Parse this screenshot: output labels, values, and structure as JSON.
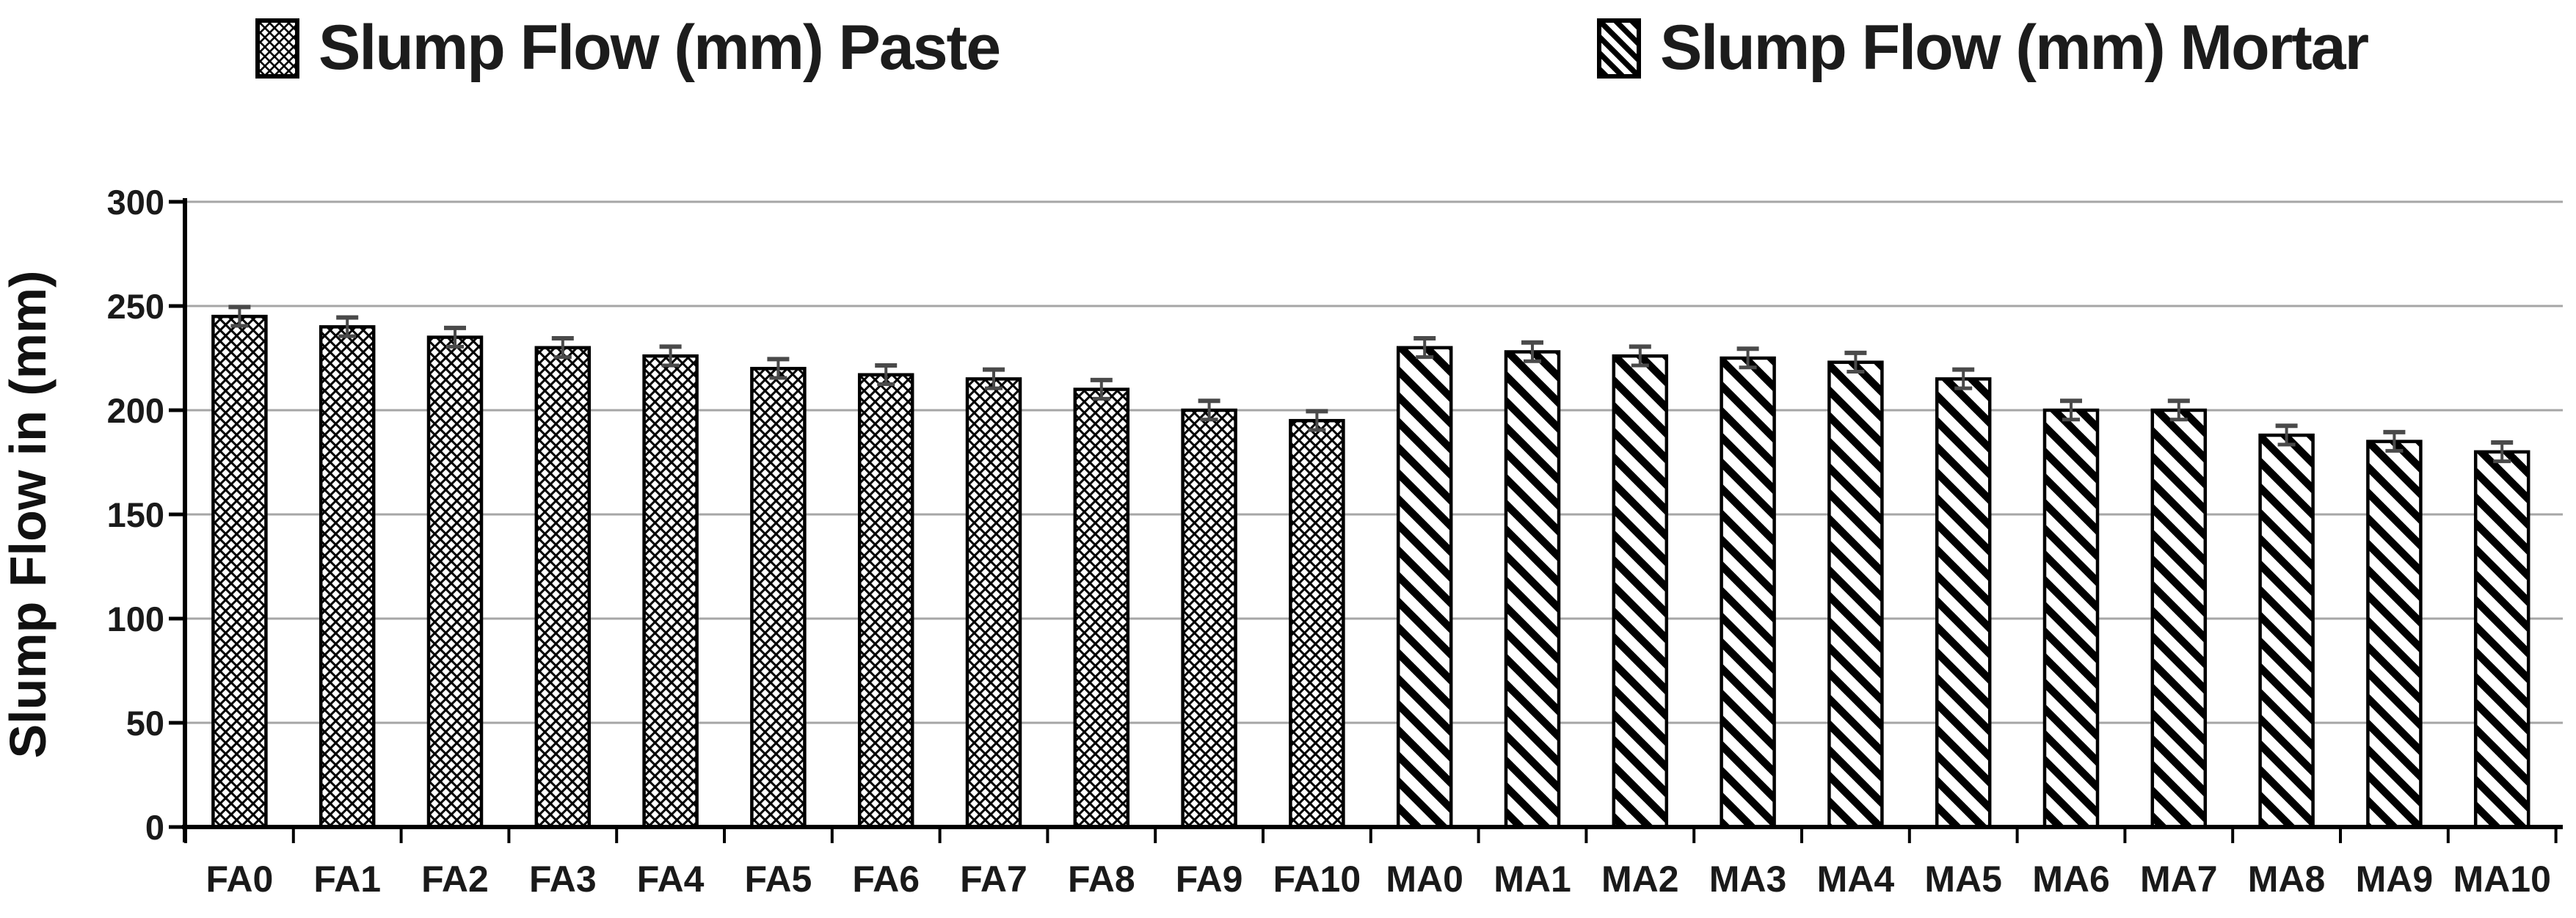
{
  "page": {
    "background": "#ffffff"
  },
  "legend": {
    "position": "top",
    "items": [
      {
        "label": "Slump Flow (mm) Paste",
        "swatch_icon": "crosshatch-pattern-swatch"
      },
      {
        "label": "Slump Flow (mm) Mortar",
        "swatch_icon": "diagonal-stripe-pattern-swatch"
      }
    ]
  },
  "chart_data": {
    "type": "bar",
    "title": "",
    "xlabel": "",
    "ylabel": "Slump Flow in (mm)",
    "ylim": [
      0,
      300
    ],
    "ytick_step": 50,
    "yticks": [
      0,
      50,
      100,
      150,
      200,
      250,
      300
    ],
    "grid": true,
    "legend_position": "top",
    "categories": [
      "FA0",
      "FA1",
      "FA2",
      "FA3",
      "FA4",
      "FA5",
      "FA6",
      "FA7",
      "FA8",
      "FA9",
      "FA10",
      "MA0",
      "MA1",
      "MA2",
      "MA3",
      "MA4",
      "MA5",
      "MA6",
      "MA7",
      "MA8",
      "MA9",
      "MA10"
    ],
    "series": [
      {
        "name": "Slump Flow (mm) Paste",
        "pattern": "crosshatch",
        "categories": [
          "FA0",
          "FA1",
          "FA2",
          "FA3",
          "FA4",
          "FA5",
          "FA6",
          "FA7",
          "FA8",
          "FA9",
          "FA10"
        ],
        "values": [
          245,
          240,
          235,
          230,
          226,
          220,
          217,
          215,
          210,
          200,
          195
        ],
        "error": 4.5
      },
      {
        "name": "Slump Flow (mm) Mortar",
        "pattern": "diagonal-stripes",
        "categories": [
          "MA0",
          "MA1",
          "MA2",
          "MA3",
          "MA4",
          "MA5",
          "MA6",
          "MA7",
          "MA8",
          "MA9",
          "MA10"
        ],
        "values": [
          230,
          228,
          226,
          225,
          223,
          215,
          200,
          200,
          188,
          185,
          180
        ],
        "error": 4.5
      }
    ],
    "colors": {
      "bar_fill": "#ffffff",
      "pattern_ink": "#000000",
      "bar_border": "#000000",
      "gridline": "#a6a6a6",
      "axis": "#000000",
      "error_bar": "#4a4a4a",
      "text": "#1a1a1a"
    }
  }
}
